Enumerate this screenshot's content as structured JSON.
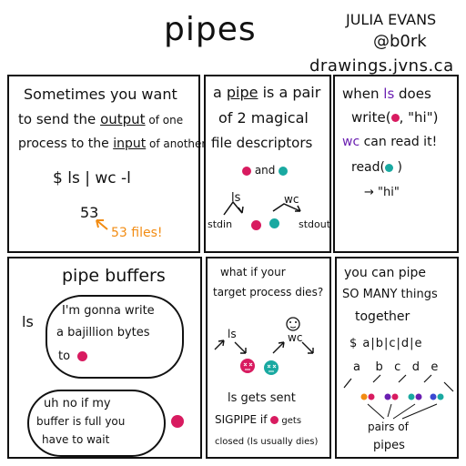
{
  "header": {
    "title": "pipes",
    "author_name": "JULIA EVANS",
    "author_handle": "@b0rk",
    "website": "drawings.jvns.ca"
  },
  "panel1": {
    "line1": "Sometimes you want",
    "line2_a": "to send the ",
    "line2_b": "output",
    "line2_c": " of one",
    "line3_a": "process to the ",
    "line3_b": "input",
    "line3_c": " of another",
    "command": "$ ls | wc -l",
    "result": "53",
    "annotation": "53 files!"
  },
  "panel2": {
    "line1_a": "a ",
    "line1_b": "pipe",
    "line1_c": " is a pair",
    "line2": "of 2 magical",
    "line3": "file descriptors",
    "and_label": "and",
    "ls_label": "ls",
    "wc_label": "wc",
    "stdin_label": "stdin",
    "stdout_label": "stdout"
  },
  "panel3": {
    "line1_a": "when ",
    "line1_b": "ls",
    "line1_c": " does",
    "line2_a": "write(",
    "line2_c": ", \"hi\")",
    "line3_a": "wc",
    "line3_b": " can read it!",
    "line4_a": "read(",
    "line4_c": " )",
    "line5": "→ \"hi\""
  },
  "panel4": {
    "title": "pipe buffers",
    "ls_label": "ls",
    "bubble1_line1": "I'm gonna write",
    "bubble1_line2": "a bajillion bytes",
    "bubble1_line3": "to",
    "bubble2_line1": "uh no if my",
    "bubble2_line2": "buffer is full you",
    "bubble2_line3": "have to wait"
  },
  "panel5": {
    "line1": "what if your",
    "line2": "target process dies?",
    "ls_label": "ls",
    "wc_label": "wc",
    "bottom1": "ls gets sent",
    "bottom2_a": "SIGPIPE if",
    "bottom2_c": " gets",
    "bottom3": "closed (ls usually dies)"
  },
  "panel6": {
    "line1": "you can pipe",
    "line2": "SO MANY things",
    "line3": "together",
    "command": "$ a|b|c|d|e",
    "letters": [
      "a",
      "b",
      "c",
      "d",
      "e"
    ],
    "caption1": "pairs of",
    "caption2": "pipes"
  },
  "colors": {
    "pink": "#d81b60",
    "teal": "#19a9a1",
    "purple": "#6a1fb1",
    "orange": "#f28c13"
  }
}
